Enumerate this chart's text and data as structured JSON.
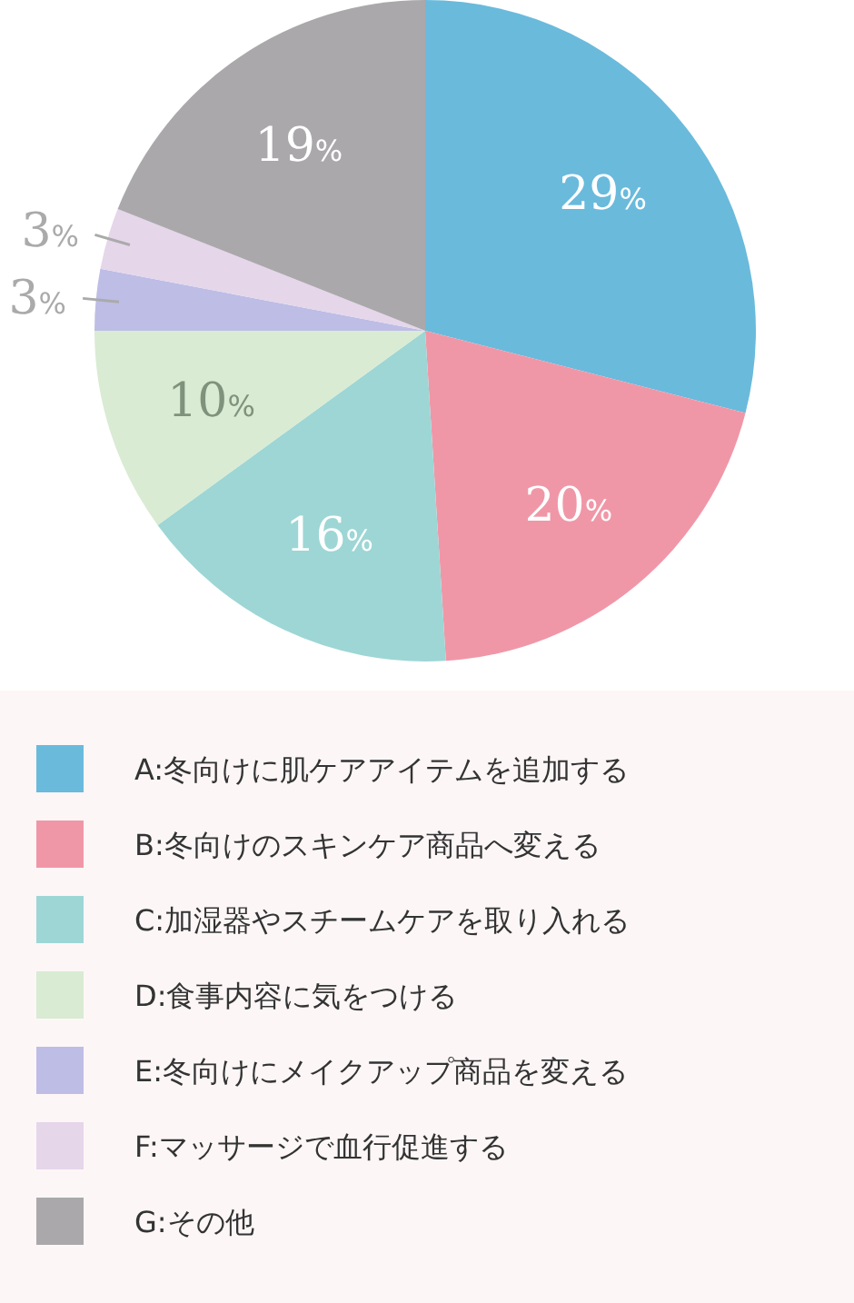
{
  "chart_data": {
    "type": "pie",
    "categories": [
      "A:冬向けに肌ケアアイテムを追加する",
      "B:冬向けのスキンケア商品へ変える",
      "C:加湿器やスチームケアを取り入れる",
      "D:食事内容に気をつける",
      "E:冬向けにメイクアップ商品を変える",
      "F:マッサージで血行促進する",
      "G:その他"
    ],
    "values": [
      29,
      20,
      16,
      10,
      3,
      3,
      19
    ],
    "colors": [
      "#6abadc",
      "#f097a7",
      "#9dd6d5",
      "#d9ebd3",
      "#bdbde6",
      "#e5d6ea",
      "#aaa8ab"
    ],
    "value_labels": [
      "29%",
      "20%",
      "16%",
      "10%",
      "3%",
      "3%",
      "19%"
    ],
    "legend": "bottom"
  }
}
